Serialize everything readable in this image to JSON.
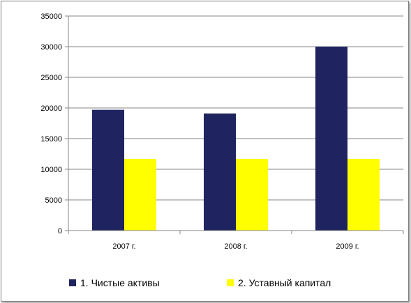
{
  "chart_data": {
    "type": "bar",
    "categories": [
      "2007 г.",
      "2008 г.",
      "2009 г."
    ],
    "series": [
      {
        "name": "1. Чистые активы",
        "color": "#1f2461",
        "values": [
          19700,
          19100,
          30000
        ]
      },
      {
        "name": "2. Уставный капитал",
        "color": "#ffff00",
        "values": [
          11700,
          11700,
          11700
        ]
      }
    ],
    "ylim": [
      0,
      35000
    ],
    "yticks": [
      "0",
      "5000",
      "10000",
      "15000",
      "20000",
      "25000",
      "30000",
      "35000"
    ],
    "grid": true,
    "legend": "bottom"
  }
}
